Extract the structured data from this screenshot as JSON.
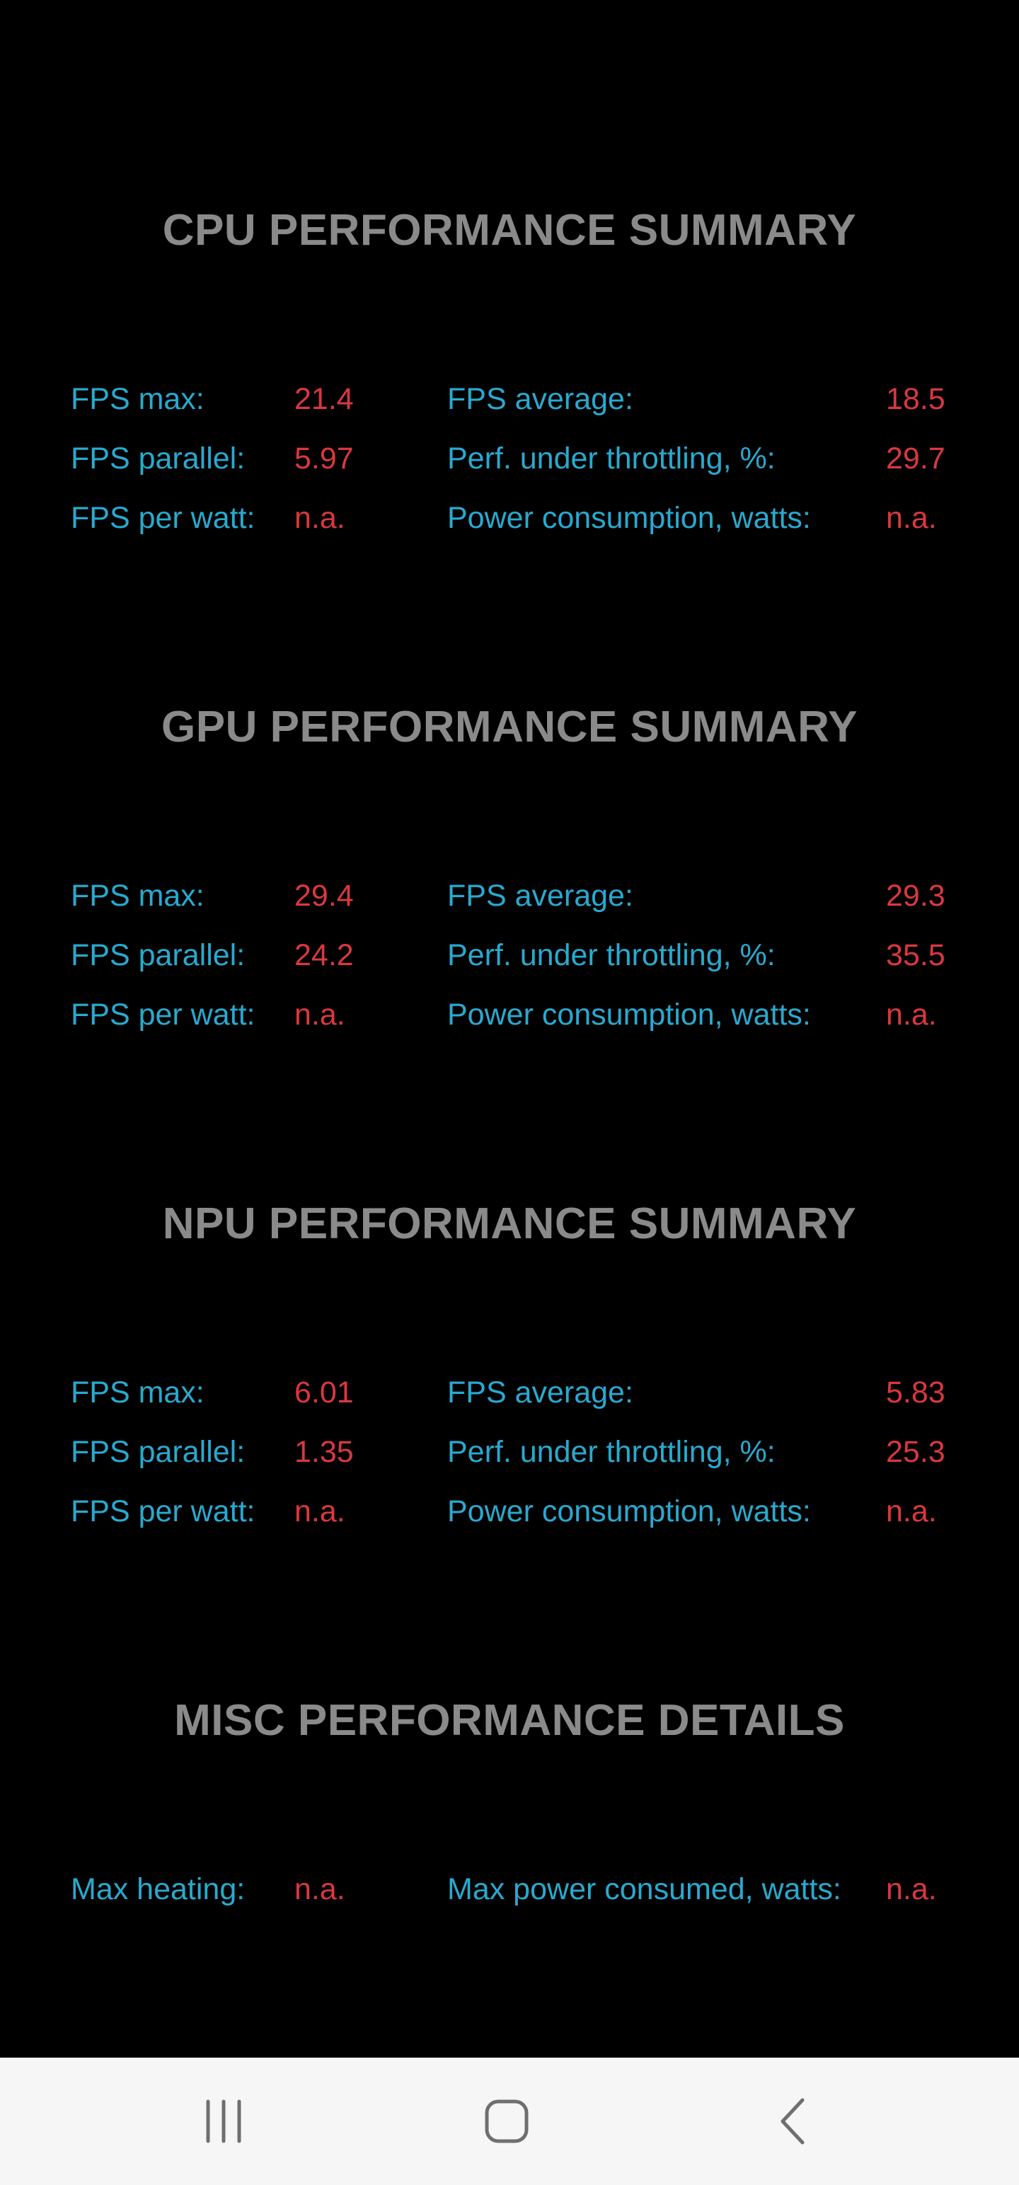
{
  "sections": [
    {
      "title": "CPU PERFORMANCE SUMMARY",
      "rows": [
        {
          "label1": "FPS max:",
          "value1": "21.4",
          "label2": "FPS average:",
          "value2": "18.5"
        },
        {
          "label1": "FPS parallel:",
          "value1": "5.97",
          "label2": "Perf. under throttling, %:",
          "value2": "29.7"
        },
        {
          "label1": "FPS per watt:",
          "value1": "n.a.",
          "label2": "Power consumption, watts:",
          "value2": "n.a."
        }
      ]
    },
    {
      "title": "GPU PERFORMANCE SUMMARY",
      "rows": [
        {
          "label1": "FPS max:",
          "value1": "29.4",
          "label2": "FPS average:",
          "value2": "29.3"
        },
        {
          "label1": "FPS parallel:",
          "value1": "24.2",
          "label2": "Perf. under throttling, %:",
          "value2": "35.5"
        },
        {
          "label1": "FPS per watt:",
          "value1": "n.a.",
          "label2": "Power consumption, watts:",
          "value2": "n.a."
        }
      ]
    },
    {
      "title": "NPU PERFORMANCE SUMMARY",
      "rows": [
        {
          "label1": "FPS max:",
          "value1": "6.01",
          "label2": "FPS average:",
          "value2": "5.83"
        },
        {
          "label1": "FPS parallel:",
          "value1": "1.35",
          "label2": "Perf. under throttling, %:",
          "value2": "25.3"
        },
        {
          "label1": "FPS per watt:",
          "value1": "n.a.",
          "label2": "Power consumption, watts:",
          "value2": "n.a."
        }
      ]
    },
    {
      "title": "MISC PERFORMANCE DETAILS",
      "rows": [
        {
          "label1": "Max heating:",
          "value1": "n.a.",
          "label2": "Max power consumed, watts:",
          "value2": "n.a."
        }
      ]
    }
  ],
  "navbar": {
    "buttons": [
      "recent-apps-icon",
      "home-icon",
      "back-icon"
    ]
  },
  "colors": {
    "background": "#000000",
    "title": "#8a8a8a",
    "label": "#29a9cf",
    "value": "#d9383f",
    "navbar": "#f6f6f6"
  }
}
